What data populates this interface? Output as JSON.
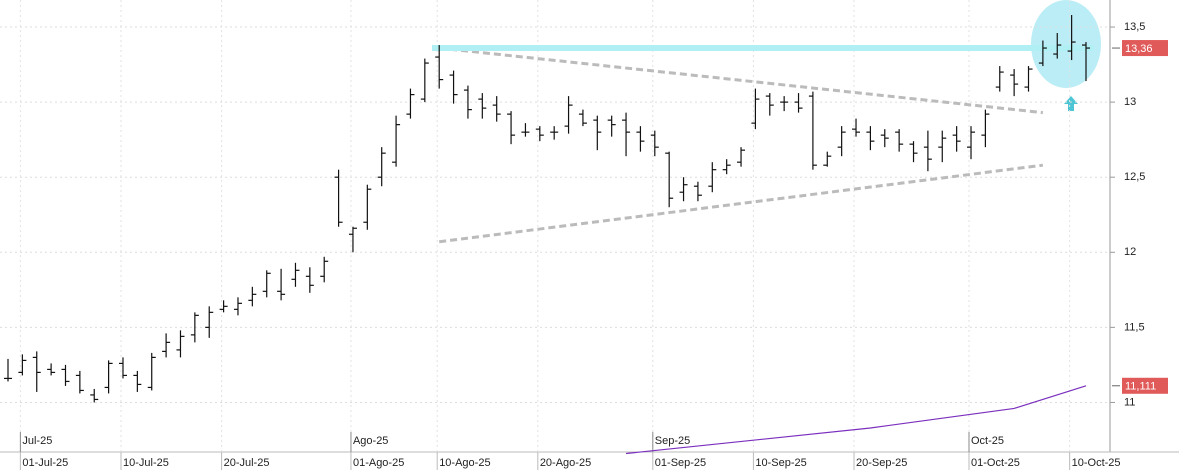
{
  "chart_data": {
    "type": "ohlc",
    "categories": [
      null,
      "01-Jul-25",
      null,
      null,
      null,
      null,
      null,
      null,
      "10-Jul-25",
      null,
      null,
      null,
      null,
      null,
      null,
      "20-Jul-25",
      null,
      null,
      null,
      null,
      null,
      null,
      null,
      null,
      "01-Ago-25",
      null,
      null,
      null,
      null,
      null,
      "10-Ago-25",
      null,
      null,
      null,
      null,
      null,
      null,
      "20-Ago-25",
      null,
      null,
      null,
      null,
      null,
      null,
      null,
      "01-Sep-25",
      null,
      null,
      null,
      null,
      null,
      null,
      "10-Sep-25",
      null,
      null,
      null,
      null,
      null,
      null,
      "20-Sep-25",
      null,
      null,
      null,
      null,
      null,
      null,
      null,
      "01-Oct-25",
      null,
      null,
      null,
      null,
      null,
      null,
      "10-Oct-25",
      null
    ],
    "months": [
      null,
      "Jul-25",
      null,
      null,
      null,
      null,
      null,
      null,
      null,
      null,
      null,
      null,
      null,
      null,
      null,
      null,
      null,
      null,
      null,
      null,
      null,
      null,
      null,
      null,
      "Ago-25",
      null,
      null,
      null,
      null,
      null,
      null,
      null,
      null,
      null,
      null,
      null,
      null,
      null,
      null,
      null,
      null,
      null,
      null,
      null,
      null,
      "Sep-25",
      null,
      null,
      null,
      null,
      null,
      null,
      null,
      null,
      null,
      null,
      null,
      null,
      null,
      null,
      null,
      null,
      null,
      null,
      null,
      null,
      null,
      "Oct-25",
      null,
      null,
      null,
      null,
      null,
      null,
      null,
      null
    ],
    "color": "#111111",
    "open": [
      11.16,
      11.2,
      11.3,
      11.22,
      11.22,
      11.18,
      11.05,
      11.1,
      11.26,
      11.18,
      11.1,
      11.34,
      11.35,
      11.45,
      11.5,
      11.62,
      11.62,
      11.68,
      11.74,
      11.74,
      11.82,
      11.84,
      11.84,
      12.5,
      12.12,
      12.2,
      12.5,
      12.6,
      12.92,
      13.02,
      13.3,
      13.18,
      13.08,
      13.02,
      12.98,
      12.92,
      12.8,
      12.82,
      12.8,
      12.84,
      12.92,
      12.88,
      12.88,
      12.88,
      12.8,
      12.78,
      12.66,
      12.4,
      12.44,
      12.44,
      12.55,
      12.6,
      12.86,
      13.04,
      13.0,
      13.0,
      13.04,
      12.58,
      12.7,
      12.82,
      12.8,
      12.78,
      12.8,
      12.72,
      12.7,
      12.7,
      12.78,
      12.7,
      12.78,
      13.1,
      13.18,
      13.1,
      13.26,
      13.32,
      13.34,
      13.38
    ],
    "high": [
      11.29,
      11.32,
      11.34,
      11.26,
      11.25,
      11.21,
      11.09,
      11.28,
      11.3,
      11.21,
      11.33,
      11.46,
      11.48,
      11.6,
      11.64,
      11.68,
      11.7,
      11.77,
      11.88,
      11.89,
      11.93,
      11.9,
      11.97,
      12.55,
      12.17,
      12.45,
      12.7,
      12.91,
      13.09,
      13.29,
      13.38,
      13.21,
      13.11,
      13.06,
      13.04,
      12.94,
      12.86,
      12.84,
      12.84,
      13.04,
      12.95,
      12.91,
      12.91,
      12.93,
      12.84,
      12.81,
      12.67,
      12.5,
      12.47,
      12.6,
      12.62,
      12.7,
      13.09,
      13.06,
      13.04,
      13.06,
      13.07,
      12.67,
      12.84,
      12.89,
      12.84,
      12.82,
      12.82,
      12.74,
      12.81,
      12.81,
      12.84,
      12.84,
      12.95,
      13.24,
      13.22,
      13.24,
      13.41,
      13.46,
      13.58,
      13.4
    ],
    "low": [
      11.14,
      11.18,
      11.07,
      11.18,
      11.11,
      11.06,
      11.0,
      11.06,
      11.16,
      11.07,
      11.08,
      11.3,
      11.3,
      11.4,
      11.43,
      11.6,
      11.58,
      11.64,
      11.7,
      11.68,
      11.77,
      11.73,
      11.8,
      12.17,
      12.0,
      12.15,
      12.44,
      12.57,
      12.89,
      13.0,
      13.09,
      12.99,
      12.89,
      12.89,
      12.87,
      12.72,
      12.77,
      12.74,
      12.75,
      12.79,
      12.84,
      12.68,
      12.77,
      12.64,
      12.67,
      12.64,
      12.3,
      12.34,
      12.34,
      12.4,
      12.52,
      12.57,
      12.82,
      12.91,
      12.94,
      12.93,
      12.55,
      12.57,
      12.64,
      12.77,
      12.68,
      12.7,
      12.67,
      12.6,
      12.54,
      12.6,
      12.67,
      12.62,
      12.7,
      13.07,
      13.04,
      13.07,
      13.24,
      13.29,
      13.28,
      13.14
    ],
    "close": [
      11.16,
      11.28,
      11.2,
      11.2,
      11.14,
      11.08,
      11.02,
      11.26,
      11.18,
      11.12,
      11.3,
      11.4,
      11.44,
      11.58,
      11.6,
      11.64,
      11.66,
      11.72,
      11.86,
      11.72,
      11.88,
      11.78,
      11.94,
      12.2,
      12.16,
      12.42,
      12.66,
      12.85,
      13.05,
      13.26,
      13.15,
      13.05,
      12.95,
      12.96,
      12.92,
      12.78,
      12.8,
      12.78,
      12.8,
      12.98,
      12.86,
      12.8,
      12.85,
      12.8,
      12.74,
      12.7,
      12.36,
      12.45,
      12.38,
      12.55,
      12.58,
      12.68,
      13.02,
      12.98,
      13.0,
      12.96,
      12.58,
      12.64,
      12.8,
      12.8,
      12.74,
      12.76,
      12.72,
      12.66,
      12.62,
      12.76,
      12.74,
      12.8,
      12.92,
      13.2,
      13.12,
      13.22,
      13.36,
      13.38,
      13.4,
      13.36
    ],
    "ylim": [
      10.67,
      13.68
    ],
    "yticks": [
      11,
      {
        "value": 11.5,
        "label": "11,5"
      },
      12,
      {
        "value": 12.5,
        "label": "12,5"
      },
      13,
      {
        "value": 13.5,
        "label": "13,5"
      }
    ],
    "grid": true,
    "lines": [
      {
        "color": "#7b2fbe",
        "style": "solid",
        "points": [
          [
            43,
            10.66
          ],
          [
            60,
            10.83
          ],
          [
            70,
            10.96
          ],
          [
            75,
            11.111
          ]
        ]
      },
      {
        "color": "#bbbbbb",
        "style": "dashed",
        "points": [
          [
            30,
            13.36
          ],
          [
            72,
            12.93
          ]
        ]
      },
      {
        "color": "#bbbbbb",
        "style": "dashed",
        "points": [
          [
            30,
            12.07
          ],
          [
            72,
            12.58
          ]
        ]
      },
      {
        "color": "#b0f0f4",
        "style": "thick",
        "points": [
          [
            29.5,
            13.36
          ],
          [
            75.5,
            13.36
          ]
        ]
      }
    ],
    "price_labels": [
      {
        "value": 13.36,
        "label": "13,36",
        "color": "#e05a5a"
      },
      {
        "value": 11.111,
        "label": "11,111",
        "color": "#e05a5a"
      }
    ]
  }
}
